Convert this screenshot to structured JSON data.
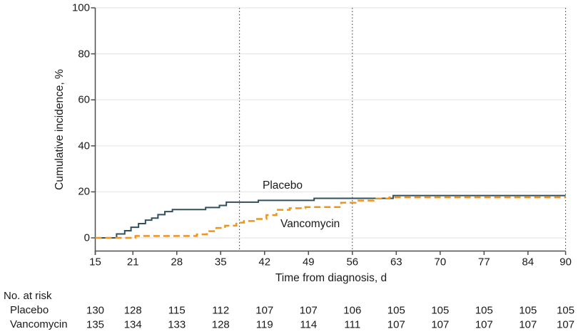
{
  "figure": {
    "background": "#ffffff",
    "colors": {
      "placebo_line": "#30505E",
      "vancomycin_line": "#F0941F",
      "gridline": "#E7E7E7",
      "axis": "#4D4D4D",
      "reference_line": "#333333",
      "text": "#1A1A1A"
    }
  },
  "chart_data": {
    "type": "line",
    "subtype": "step-function-cumulative-incidence",
    "title": "",
    "xlabel": "Time from diagnosis, d",
    "ylabel": "Cumulative incidence, %",
    "xlim": [
      15,
      90
    ],
    "ylim": [
      0,
      100
    ],
    "xticks": [
      15,
      21,
      28,
      35,
      42,
      49,
      56,
      63,
      70,
      77,
      84,
      90
    ],
    "yticks": [
      0,
      20,
      40,
      60,
      80,
      100
    ],
    "grid": "horizontal",
    "legend_position": "inline-labels",
    "reference_lines_x": [
      38,
      56,
      90
    ],
    "series": [
      {
        "name": "Placebo",
        "line": "solid",
        "color": "#30505E",
        "label_pos": {
          "x": 41.7,
          "y": 22.5
        },
        "points": [
          [
            15,
            0
          ],
          [
            18.4,
            1.7
          ],
          [
            19.7,
            3.1
          ],
          [
            20.7,
            4.6
          ],
          [
            21.9,
            6.2
          ],
          [
            23.0,
            7.7
          ],
          [
            24.0,
            8.6
          ],
          [
            25.0,
            10.1
          ],
          [
            26.1,
            11.4
          ],
          [
            27.3,
            12.3
          ],
          [
            32.6,
            13.2
          ],
          [
            34.8,
            14.1
          ],
          [
            35.9,
            15.5
          ],
          [
            41.0,
            16.3
          ],
          [
            49.9,
            17.2
          ],
          [
            62.5,
            18.4
          ],
          [
            90,
            18.4
          ]
        ]
      },
      {
        "name": "Vancomycin",
        "line": "dashed",
        "color": "#F0941F",
        "label_pos": {
          "x": 44.5,
          "y": 5.8
        },
        "points": [
          [
            15,
            0
          ],
          [
            21.4,
            0.8
          ],
          [
            31.2,
            1.5
          ],
          [
            32.8,
            2.9
          ],
          [
            34.3,
            4.3
          ],
          [
            35.7,
            5.3
          ],
          [
            37.5,
            6.6
          ],
          [
            38.7,
            7.3
          ],
          [
            40.5,
            8.2
          ],
          [
            42.3,
            9.9
          ],
          [
            43.9,
            12.2
          ],
          [
            46.0,
            12.9
          ],
          [
            48.5,
            13.4
          ],
          [
            54.2,
            15.3
          ],
          [
            56.5,
            16.2
          ],
          [
            59.4,
            17.1
          ],
          [
            61.9,
            17.6
          ],
          [
            90,
            17.6
          ]
        ]
      }
    ]
  },
  "at_risk": {
    "header": "No. at risk",
    "timepoints": [
      15,
      21,
      28,
      35,
      42,
      49,
      56,
      63,
      70,
      77,
      84,
      90
    ],
    "rows": [
      {
        "label": "Placebo",
        "values": [
          130,
          128,
          115,
          112,
          107,
          107,
          106,
          105,
          105,
          105,
          105,
          105
        ]
      },
      {
        "label": "Vancomycin",
        "values": [
          135,
          134,
          133,
          128,
          119,
          114,
          111,
          107,
          107,
          107,
          107,
          107
        ]
      }
    ]
  }
}
